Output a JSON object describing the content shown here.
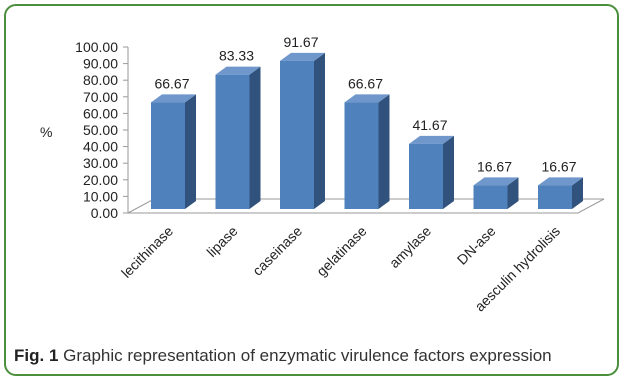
{
  "figure": {
    "caption_label": "Fig. 1",
    "caption_text": " Graphic representation of enzymatic virulence factors expression"
  },
  "chart_data": {
    "type": "bar",
    "title": "",
    "xlabel": "",
    "ylabel": "%",
    "ylim": [
      0,
      100
    ],
    "y_ticks": [
      "0.00",
      "10.00",
      "20.00",
      "30.00",
      "40.00",
      "50.00",
      "60.00",
      "70.00",
      "80.00",
      "90.00",
      "100.00"
    ],
    "categories": [
      "lecithinase",
      "lipase",
      "caseinase",
      "gelatinase",
      "amylase",
      "DN-ase",
      "aesculin hydrolisis"
    ],
    "values": [
      66.67,
      83.33,
      91.67,
      66.67,
      41.67,
      16.67,
      16.67
    ],
    "value_labels": [
      "66.67",
      "83.33",
      "91.67",
      "66.67",
      "41.67",
      "16.67",
      "16.67"
    ],
    "grid": false,
    "legend": "none",
    "colors": {
      "bar_front": "#4f81bd",
      "bar_side": "#30527c",
      "bar_top": "#6f97cc"
    }
  }
}
